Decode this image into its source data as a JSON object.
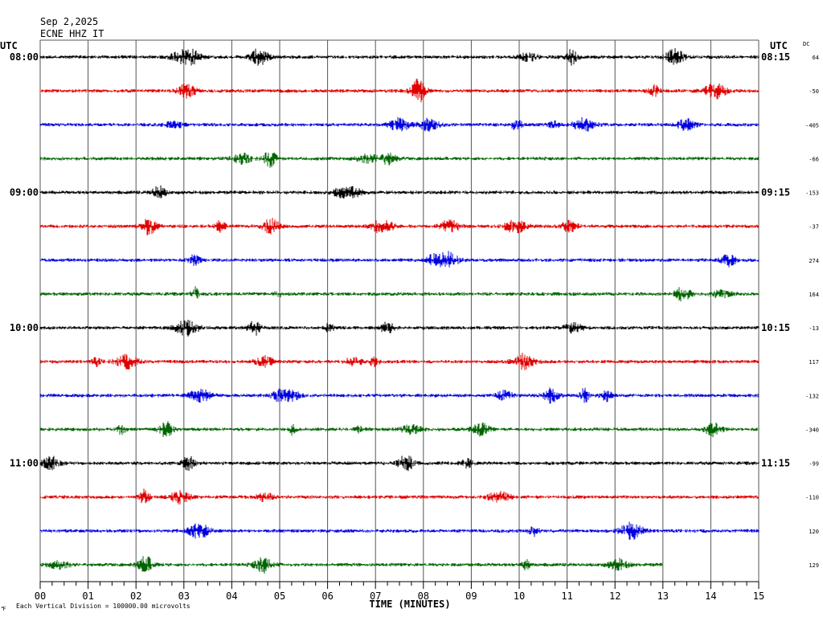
{
  "header": {
    "date": "Sep 2,2025",
    "station": "ECNE HHZ IT"
  },
  "left_axis_title": "UTC",
  "right_axis_title": "UTC",
  "dc_title": "DC",
  "footer": {
    "scale_note": "Each Vertical Division = 100000.00 microvolts",
    "corner_mark": "℉"
  },
  "chart_data": {
    "type": "line",
    "title": "ECNE HHZ IT",
    "xlabel": "TIME (MINUTES)",
    "ylabel": "UTC",
    "xlim": [
      0,
      15
    ],
    "x_ticks": [
      "00",
      "01",
      "02",
      "03",
      "04",
      "05",
      "06",
      "07",
      "08",
      "09",
      "10",
      "11",
      "12",
      "13",
      "14",
      "15"
    ],
    "grid": true,
    "left_hour_labels": [
      {
        "row": 0,
        "label": "08:00"
      },
      {
        "row": 4,
        "label": "09:00"
      },
      {
        "row": 8,
        "label": "10:00"
      },
      {
        "row": 12,
        "label": "11:00"
      }
    ],
    "right_hour_labels": [
      {
        "row": 0,
        "label": "08:15"
      },
      {
        "row": 4,
        "label": "09:15"
      },
      {
        "row": 8,
        "label": "10:15"
      },
      {
        "row": 12,
        "label": "11:15"
      }
    ],
    "trace_colors": [
      "#000000",
      "#e00000",
      "#0000e0",
      "#006400"
    ],
    "traces": [
      {
        "dc": "64",
        "end_minute": 15
      },
      {
        "dc": "-50",
        "end_minute": 15
      },
      {
        "dc": "-405",
        "end_minute": 15
      },
      {
        "dc": "-66",
        "end_minute": 15
      },
      {
        "dc": "-153",
        "end_minute": 15
      },
      {
        "dc": "-37",
        "end_minute": 15
      },
      {
        "dc": "274",
        "end_minute": 15
      },
      {
        "dc": "164",
        "end_minute": 15
      },
      {
        "dc": "-13",
        "end_minute": 15
      },
      {
        "dc": "117",
        "end_minute": 15
      },
      {
        "dc": "-132",
        "end_minute": 15
      },
      {
        "dc": "-340",
        "end_minute": 15
      },
      {
        "dc": "-99",
        "end_minute": 15
      },
      {
        "dc": "-110",
        "end_minute": 15
      },
      {
        "dc": "120",
        "end_minute": 15
      },
      {
        "dc": "129",
        "end_minute": 13
      }
    ]
  }
}
